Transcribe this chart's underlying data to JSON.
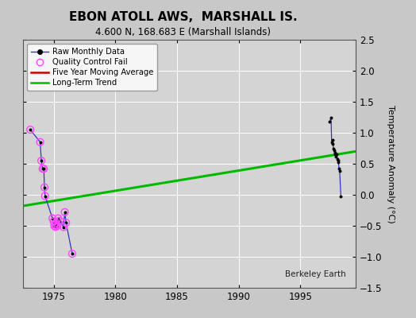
{
  "title": "EBON ATOLL AWS,  MARSHALL IS.",
  "subtitle": "4.600 N, 168.683 E (Marshall Islands)",
  "ylabel": "Temperature Anomaly (°C)",
  "credit": "Berkeley Earth",
  "xlim": [
    1972.5,
    1999.5
  ],
  "ylim": [
    -1.5,
    2.5
  ],
  "yticks": [
    -1.5,
    -1.0,
    -0.5,
    0.0,
    0.5,
    1.0,
    1.5,
    2.0,
    2.5
  ],
  "xticks": [
    1975,
    1980,
    1985,
    1990,
    1995
  ],
  "bg_color": "#c8c8c8",
  "plot_bg_color": "#d4d4d4",
  "grid_color": "#ffffff",
  "raw_x1": [
    1973.1,
    1973.9,
    1974.0,
    1974.1,
    1974.2,
    1974.25,
    1974.3,
    1974.9,
    1975.0,
    1975.05,
    1975.1,
    1975.15,
    1975.2,
    1975.3,
    1975.35,
    1975.5,
    1975.8,
    1975.9,
    1976.0,
    1976.5
  ],
  "raw_y1": [
    1.05,
    0.85,
    0.55,
    0.42,
    0.42,
    0.12,
    -0.02,
    -0.38,
    -0.43,
    -0.5,
    -0.48,
    -0.52,
    -0.45,
    -0.5,
    -0.38,
    -0.42,
    -0.52,
    -0.28,
    -0.45,
    -0.95
  ],
  "qc_mask1": [
    true,
    true,
    true,
    true,
    true,
    true,
    true,
    true,
    true,
    true,
    true,
    true,
    true,
    true,
    true,
    true,
    true,
    true,
    true,
    true
  ],
  "raw_x2": [
    1997.4,
    1997.5,
    1997.55,
    1997.6,
    1997.65,
    1997.7,
    1997.75,
    1997.8,
    1997.85,
    1997.9,
    1997.95,
    1998.0,
    1998.05,
    1998.1,
    1998.15,
    1998.2,
    1998.3
  ],
  "raw_y2": [
    1.18,
    1.25,
    0.85,
    0.88,
    0.82,
    0.75,
    0.72,
    0.65,
    0.68,
    0.62,
    0.65,
    0.58,
    0.55,
    0.52,
    0.42,
    0.38,
    -0.02
  ],
  "trend_x": [
    1972.5,
    1999.5
  ],
  "trend_y": [
    -0.18,
    0.7
  ],
  "line_color": "#3333cc",
  "marker_color": "#000000",
  "qc_color": "#ff44ff",
  "trend_color": "#00bb00",
  "mavg_color": "#cc0000"
}
